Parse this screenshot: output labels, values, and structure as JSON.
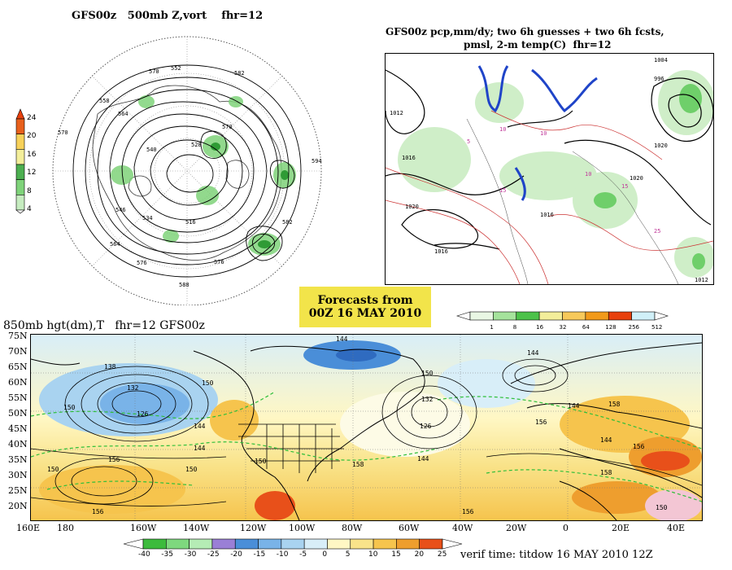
{
  "panel500": {
    "title": "GFS00z   500mb Z,vort    fhr=12",
    "colorbar": {
      "labels": [
        "24",
        "20",
        "16",
        "12",
        "8",
        "4"
      ],
      "colors": [
        "#e8601c",
        "#f7d15a",
        "#f3ee9a",
        "#4caf50",
        "#7fd37a",
        "#c6ecc0"
      ]
    },
    "contour_labels": [
      "552",
      "558",
      "564",
      "570",
      "576",
      "582",
      "588",
      "594",
      "540",
      "546",
      "534",
      "528",
      "516"
    ]
  },
  "panelQpf": {
    "title_line1": "GFS00z pcp,mm/dy; two 6h guesses + two 6h fcsts,",
    "title_line2": "pmsl, 2-m temp(C)  fhr=12",
    "colorbar": {
      "labels": [
        "1",
        "8",
        "16",
        "32",
        "64",
        "128",
        "256",
        "512"
      ],
      "colors": [
        "#e9f7e4",
        "#a5e39c",
        "#4cc24a",
        "#f3ee9a",
        "#f7c95a",
        "#f29a1a",
        "#e8400c",
        "#d0f0f8"
      ]
    },
    "isobar_labels": [
      "1020",
      "1016",
      "1012",
      "1008",
      "1004",
      "996",
      "992",
      "1000",
      "1024"
    ],
    "temp_labels": [
      "10",
      "15",
      "20",
      "5",
      "25"
    ]
  },
  "forecastBox": {
    "line1": "Forecasts from",
    "line2": "00Z 16 MAY 2010"
  },
  "panel850": {
    "title": "850mb hgt(dm),T   fhr=12 GFS00z",
    "lat_labels": [
      "75N",
      "70N",
      "65N",
      "60N",
      "55N",
      "50N",
      "45N",
      "40N",
      "35N",
      "30N",
      "25N",
      "20N"
    ],
    "lon_labels": [
      "160E",
      "180",
      "160W",
      "140W",
      "120W",
      "100W",
      "80W",
      "60W",
      "40W",
      "20W",
      "0",
      "20E",
      "40E"
    ],
    "contour_labels": [
      "144",
      "138",
      "132",
      "126",
      "150",
      "156",
      "150",
      "144",
      "132",
      "126",
      "156",
      "150",
      "144",
      "158"
    ],
    "colorbar": {
      "labels": [
        "-40",
        "-35",
        "-30",
        "-25",
        "-20",
        "-15",
        "-10",
        "-5",
        "0",
        "5",
        "10",
        "15",
        "20",
        "25"
      ],
      "colors": [
        "#3dbb3d",
        "#7ed87e",
        "#b5ecb5",
        "#9a7fd6",
        "#4a8ed8",
        "#79b3e8",
        "#a9d3f0",
        "#d8eef8",
        "#fff7c4",
        "#f9e38a",
        "#f6c44d",
        "#ee9e2e",
        "#e8501a"
      ]
    },
    "verif_time": "verif time: titdow 16 MAY 2010 12Z"
  }
}
